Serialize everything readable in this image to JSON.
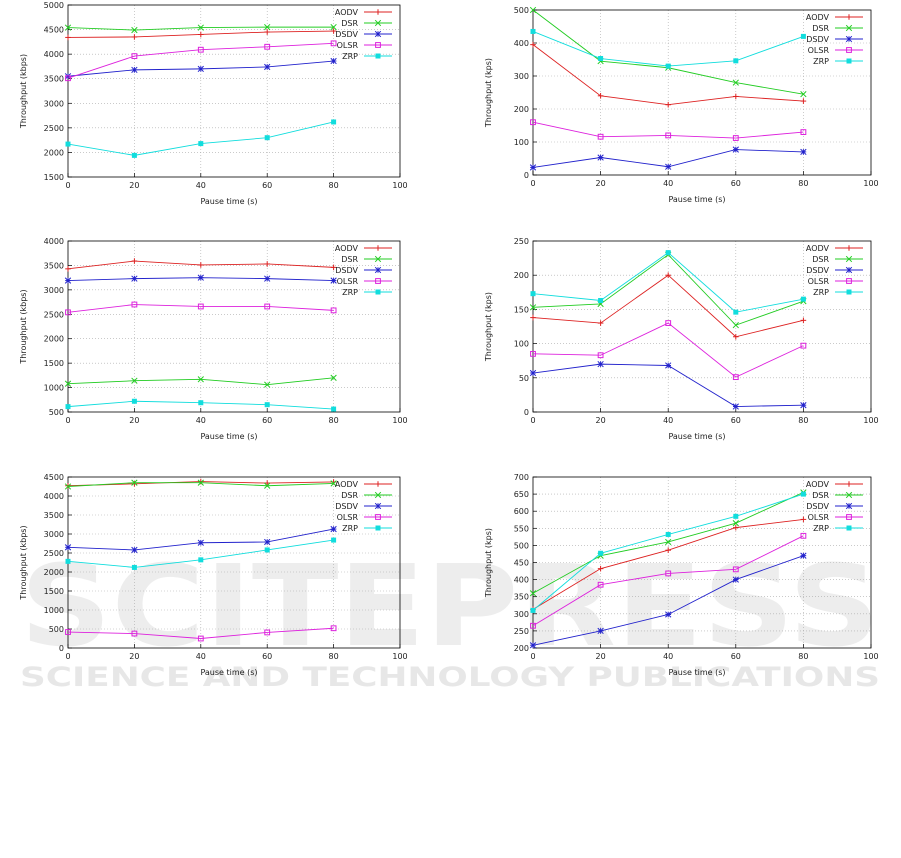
{
  "watermark": {
    "line1": "SCITEPRESS",
    "line2": "SCIENCE AND TECHNOLOGY PUBLICATIONS"
  },
  "chart_data": [
    {
      "type": "line",
      "xlabel": "Pause time (s)",
      "ylabel": "Throughput (kbps)",
      "xlim": [
        0,
        100
      ],
      "ylim": [
        1500,
        5000
      ],
      "xticks": [
        0,
        20,
        40,
        60,
        80,
        100
      ],
      "yticks": [
        1500,
        2000,
        2500,
        3000,
        3500,
        4000,
        4500,
        5000
      ],
      "x": [
        0,
        20,
        40,
        60,
        80
      ],
      "grid": true,
      "legend": "top-right",
      "series": [
        {
          "name": "AODV",
          "values": [
            4340,
            4350,
            4400,
            4450,
            4470
          ]
        },
        {
          "name": "DSR",
          "values": [
            4540,
            4490,
            4540,
            4550,
            4550
          ]
        },
        {
          "name": "DSDV",
          "values": [
            3550,
            3680,
            3700,
            3740,
            3860
          ]
        },
        {
          "name": "OLSR",
          "values": [
            3510,
            3960,
            4090,
            4150,
            4220
          ]
        },
        {
          "name": "ZRP",
          "values": [
            2170,
            1940,
            2180,
            2300,
            2620
          ]
        }
      ]
    },
    {
      "type": "line",
      "xlabel": "Pause time (s)",
      "ylabel": "Throughput (kps)",
      "xlim": [
        0,
        100
      ],
      "ylim": [
        0,
        500
      ],
      "xticks": [
        0,
        20,
        40,
        60,
        80,
        100
      ],
      "yticks": [
        0,
        100,
        200,
        300,
        400,
        500
      ],
      "x": [
        0,
        20,
        40,
        60,
        80
      ],
      "grid": true,
      "legend": "top-right",
      "series": [
        {
          "name": "AODV",
          "values": [
            395,
            240,
            213,
            238,
            224
          ]
        },
        {
          "name": "DSR",
          "values": [
            500,
            345,
            325,
            280,
            245
          ]
        },
        {
          "name": "DSDV",
          "values": [
            23,
            53,
            25,
            77,
            70
          ]
        },
        {
          "name": "OLSR",
          "values": [
            160,
            116,
            120,
            112,
            130
          ]
        },
        {
          "name": "ZRP",
          "values": [
            435,
            353,
            330,
            346,
            420
          ]
        }
      ]
    },
    {
      "type": "line",
      "xlabel": "Pause time (s)",
      "ylabel": "Throughput (kbps)",
      "xlim": [
        0,
        100
      ],
      "ylim": [
        500,
        4000
      ],
      "xticks": [
        0,
        20,
        40,
        60,
        80,
        100
      ],
      "yticks": [
        500,
        1000,
        1500,
        2000,
        2500,
        3000,
        3500,
        4000
      ],
      "x": [
        0,
        20,
        40,
        60,
        80
      ],
      "grid": true,
      "legend": "top-right",
      "series": [
        {
          "name": "AODV",
          "values": [
            3430,
            3590,
            3510,
            3530,
            3460
          ]
        },
        {
          "name": "DSR",
          "values": [
            1080,
            1140,
            1170,
            1060,
            1200
          ]
        },
        {
          "name": "DSDV",
          "values": [
            3190,
            3230,
            3250,
            3230,
            3190
          ]
        },
        {
          "name": "OLSR",
          "values": [
            2540,
            2700,
            2660,
            2660,
            2580
          ]
        },
        {
          "name": "ZRP",
          "values": [
            610,
            720,
            690,
            650,
            560
          ]
        }
      ]
    },
    {
      "type": "line",
      "xlabel": "Pause time (s)",
      "ylabel": "Throughput (kps)",
      "xlim": [
        0,
        100
      ],
      "ylim": [
        0,
        250
      ],
      "xticks": [
        0,
        20,
        40,
        60,
        80,
        100
      ],
      "yticks": [
        0,
        50,
        100,
        150,
        200,
        250
      ],
      "x": [
        0,
        20,
        40,
        60,
        80
      ],
      "grid": true,
      "legend": "top-right",
      "series": [
        {
          "name": "AODV",
          "values": [
            138,
            130,
            200,
            110,
            134
          ]
        },
        {
          "name": "DSR",
          "values": [
            153,
            158,
            230,
            127,
            162
          ]
        },
        {
          "name": "DSDV",
          "values": [
            57,
            70,
            68,
            8,
            10
          ]
        },
        {
          "name": "OLSR",
          "values": [
            85,
            83,
            130,
            51,
            97
          ]
        },
        {
          "name": "ZRP",
          "values": [
            173,
            163,
            233,
            146,
            165
          ]
        }
      ]
    },
    {
      "type": "line",
      "xlabel": "Pause time (s)",
      "ylabel": "Throughput (kbps)",
      "xlim": [
        0,
        100
      ],
      "ylim": [
        0,
        4500
      ],
      "xticks": [
        0,
        20,
        40,
        60,
        80,
        100
      ],
      "yticks": [
        0,
        500,
        1000,
        1500,
        2000,
        2500,
        3000,
        3500,
        4000,
        4500
      ],
      "x": [
        0,
        20,
        40,
        60,
        80
      ],
      "grid": true,
      "legend": "top-right",
      "series": [
        {
          "name": "AODV",
          "values": [
            4270,
            4320,
            4380,
            4340,
            4370
          ]
        },
        {
          "name": "DSR",
          "values": [
            4250,
            4350,
            4350,
            4270,
            4330
          ]
        },
        {
          "name": "DSDV",
          "values": [
            2650,
            2580,
            2770,
            2790,
            3130
          ]
        },
        {
          "name": "OLSR",
          "values": [
            420,
            380,
            250,
            410,
            520
          ]
        },
        {
          "name": "ZRP",
          "values": [
            2280,
            2120,
            2320,
            2580,
            2840
          ]
        }
      ]
    },
    {
      "type": "line",
      "xlabel": "Pause time (s)",
      "ylabel": "Throughput (kps)",
      "xlim": [
        0,
        100
      ],
      "ylim": [
        200,
        700
      ],
      "xticks": [
        0,
        20,
        40,
        60,
        80,
        100
      ],
      "yticks": [
        200,
        250,
        300,
        350,
        400,
        450,
        500,
        550,
        600,
        650,
        700
      ],
      "x": [
        0,
        20,
        40,
        60,
        80
      ],
      "grid": true,
      "legend": "top-right",
      "series": [
        {
          "name": "AODV",
          "values": [
            313,
            432,
            486,
            552,
            576
          ]
        },
        {
          "name": "DSR",
          "values": [
            360,
            470,
            510,
            565,
            655
          ]
        },
        {
          "name": "DSDV",
          "values": [
            208,
            250,
            298,
            400,
            470
          ]
        },
        {
          "name": "OLSR",
          "values": [
            265,
            385,
            418,
            430,
            528
          ]
        },
        {
          "name": "ZRP",
          "values": [
            310,
            477,
            532,
            585,
            650
          ]
        }
      ]
    }
  ],
  "colors": {
    "AODV": "#dd2222",
    "DSR": "#22cc22",
    "DSDV": "#2222cc",
    "OLSR": "#dd22dd",
    "ZRP": "#11dddd"
  },
  "markers": {
    "AODV": "plus",
    "DSR": "cross",
    "DSDV": "star",
    "OLSR": "open-square",
    "ZRP": "filled-square"
  }
}
